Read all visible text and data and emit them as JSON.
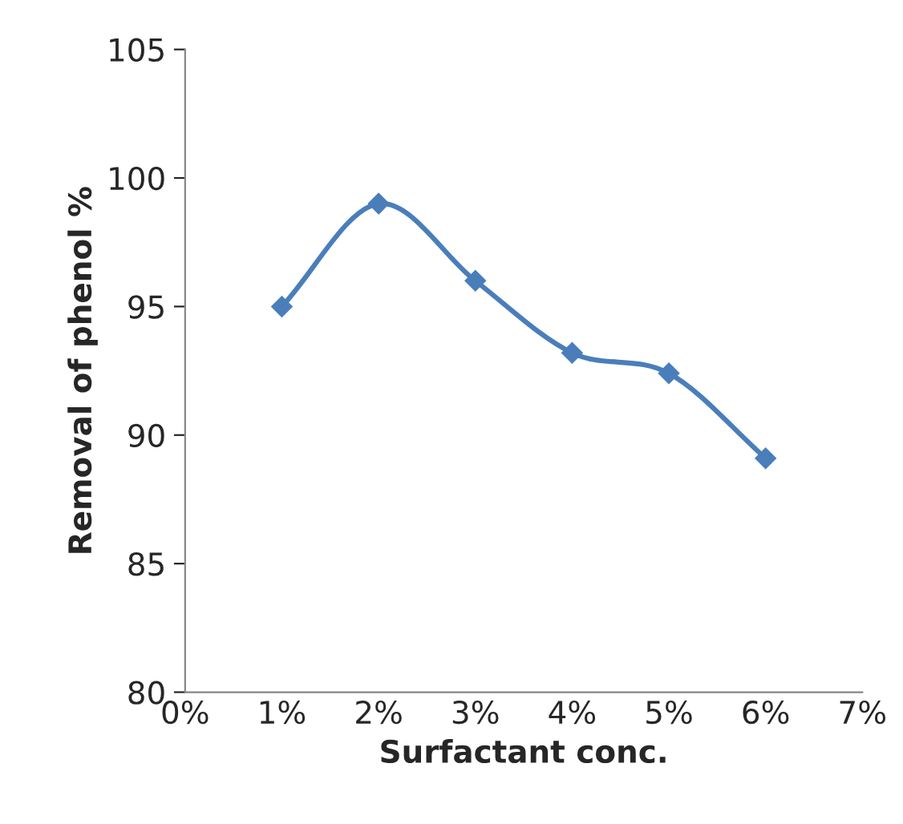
{
  "chart_data": {
    "type": "line",
    "xlabel": "Surfactant conc.",
    "ylabel": "Removal of phenol %",
    "x": [
      1,
      2,
      3,
      4,
      5,
      6
    ],
    "series": [
      {
        "color": "#4a7ebb",
        "values": [
          95,
          99,
          96,
          93.2,
          92.4,
          89.1
        ]
      }
    ],
    "marker": "diamond",
    "line_style": "solid",
    "grid": false,
    "legend": false,
    "xlim": [
      0,
      7
    ],
    "ylim": [
      80,
      105
    ],
    "xticks": [
      {
        "value": 0,
        "label": "0%"
      },
      {
        "value": 1,
        "label": "1%"
      },
      {
        "value": 2,
        "label": "2%"
      },
      {
        "value": 3,
        "label": "3%"
      },
      {
        "value": 4,
        "label": "4%"
      },
      {
        "value": 5,
        "label": "5%"
      },
      {
        "value": 6,
        "label": "6%"
      },
      {
        "value": 7,
        "label": "7%"
      }
    ],
    "yticks": [
      80,
      85,
      90,
      95,
      100,
      105
    ]
  }
}
